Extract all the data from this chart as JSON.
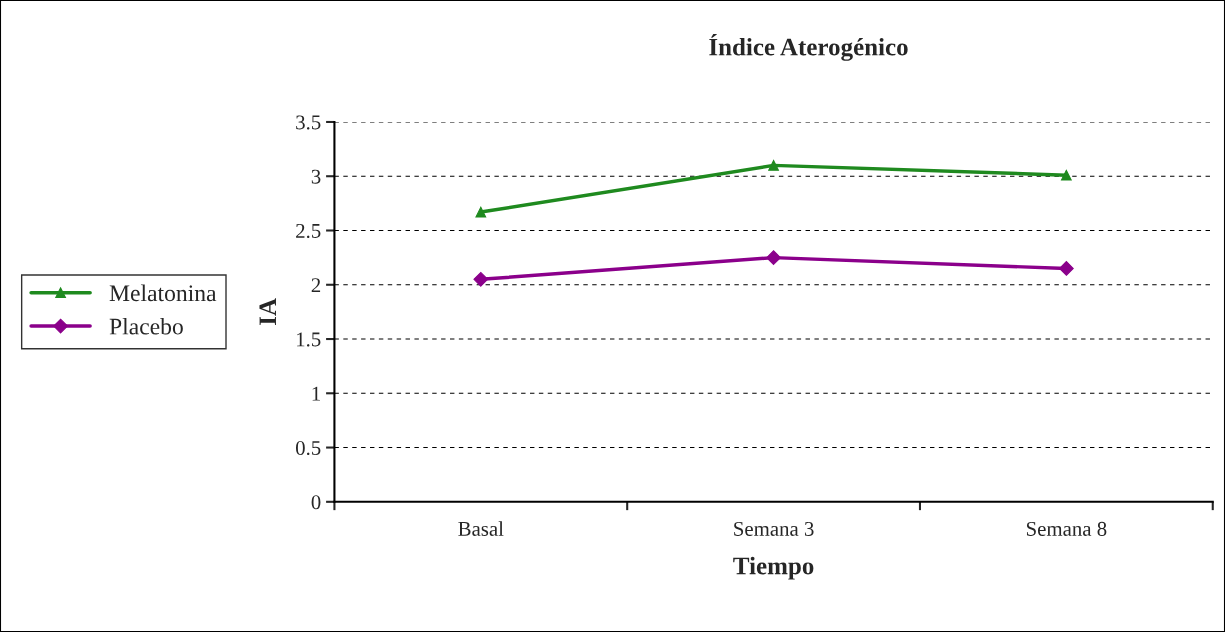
{
  "chart_data": {
    "type": "line",
    "title": "Índice Aterogénico",
    "xlabel": "Tiempo",
    "ylabel": "IA",
    "categories": [
      "Basal",
      "Semana 3",
      "Semana 8"
    ],
    "series": [
      {
        "name": "Melatonina",
        "color": "#1f8a1f",
        "marker": "triangle",
        "values": [
          2.67,
          3.1,
          3.01
        ]
      },
      {
        "name": "Placebo",
        "color": "#8b008b",
        "marker": "diamond",
        "values": [
          2.05,
          2.25,
          2.15
        ]
      }
    ],
    "ylim": [
      0,
      3.5
    ],
    "yticks": [
      0,
      0.5,
      1,
      1.5,
      2,
      2.5,
      3,
      3.5
    ],
    "grid": "y",
    "legend": "left",
    "line_style": "solid"
  }
}
